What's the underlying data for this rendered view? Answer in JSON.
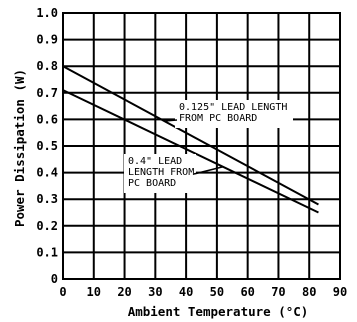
{
  "chart_data": {
    "type": "line",
    "title": "",
    "xlabel": "Ambient Temperature (°C)",
    "ylabel": "Power Dissipation (W)",
    "xlim": [
      0,
      90
    ],
    "ylim": [
      0,
      1.0
    ],
    "x_ticks": [
      0,
      10,
      20,
      30,
      40,
      50,
      60,
      70,
      80,
      90
    ],
    "y_ticks": [
      "0",
      "0.1",
      "0.2",
      "0.3",
      "0.4",
      "0.5",
      "0.6",
      "0.7",
      "0.8",
      "0.9",
      "1.0"
    ],
    "grid": true,
    "series": [
      {
        "name": "0.125\" LEAD LENGTH FROM PC BOARD",
        "x": [
          0,
          83
        ],
        "y": [
          0.8,
          0.28
        ]
      },
      {
        "name": "0.4\" LEAD LENGTH FROM PC BOARD",
        "x": [
          0,
          83
        ],
        "y": [
          0.71,
          0.25
        ]
      }
    ],
    "annotations": [
      {
        "lines": [
          "0.125\" LEAD LENGTH",
          "FROM PC BOARD"
        ],
        "series": 0
      },
      {
        "lines": [
          "0.4\" LEAD",
          "LENGTH FROM",
          "PC BOARD"
        ],
        "series": 1
      }
    ]
  }
}
